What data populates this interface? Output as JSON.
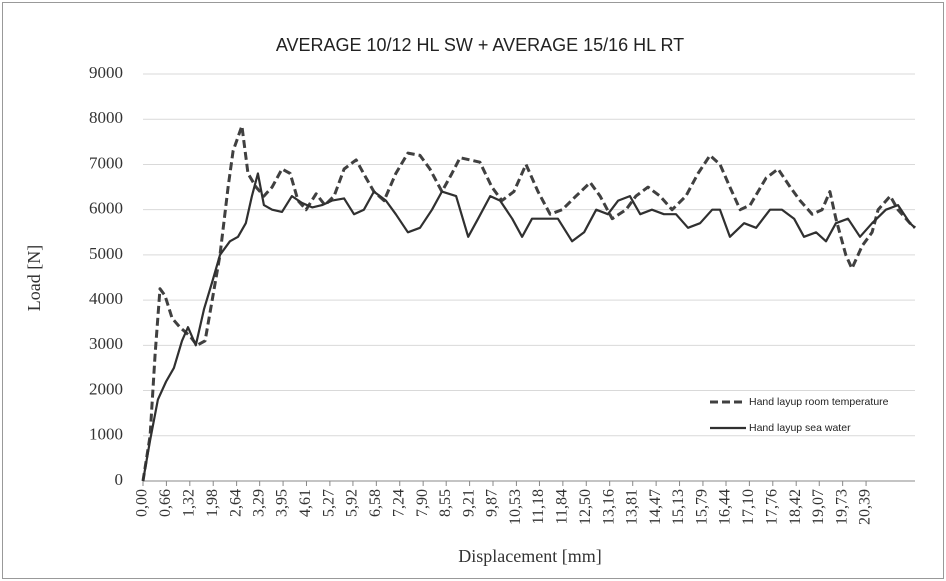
{
  "chart_data": {
    "type": "line",
    "title": "AVERAGE 10/12 HL SW + AVERAGE 15/16 HL RT",
    "x_label": "Displacement [mm]",
    "y_label": "Load [N]",
    "xlim": [
      0,
      21.77
    ],
    "ylim": [
      0,
      9000
    ],
    "yticks": [
      0,
      1000,
      2000,
      3000,
      4000,
      5000,
      6000,
      7000,
      8000,
      9000
    ],
    "xticks": [
      {
        "value": 0,
        "label": "0,00"
      },
      {
        "value": 0.66,
        "label": "0,66"
      },
      {
        "value": 1.32,
        "label": "1,32"
      },
      {
        "value": 1.98,
        "label": "1,98"
      },
      {
        "value": 2.64,
        "label": "2,64"
      },
      {
        "value": 3.29,
        "label": "3,29"
      },
      {
        "value": 3.95,
        "label": "3,95"
      },
      {
        "value": 4.61,
        "label": "4,61"
      },
      {
        "value": 5.27,
        "label": "5,27"
      },
      {
        "value": 5.92,
        "label": "5,92"
      },
      {
        "value": 6.58,
        "label": "6,58"
      },
      {
        "value": 7.24,
        "label": "7,24"
      },
      {
        "value": 7.9,
        "label": "7,90"
      },
      {
        "value": 8.55,
        "label": "8,55"
      },
      {
        "value": 9.21,
        "label": "9,21"
      },
      {
        "value": 9.87,
        "label": "9,87"
      },
      {
        "value": 10.53,
        "label": "10,53"
      },
      {
        "value": 11.18,
        "label": "11,18"
      },
      {
        "value": 11.84,
        "label": "11,84"
      },
      {
        "value": 12.5,
        "label": "12,50"
      },
      {
        "value": 13.16,
        "label": "13,16"
      },
      {
        "value": 13.81,
        "label": "13,81"
      },
      {
        "value": 14.47,
        "label": "14,47"
      },
      {
        "value": 15.13,
        "label": "15,13"
      },
      {
        "value": 15.79,
        "label": "15,79"
      },
      {
        "value": 16.44,
        "label": "16,44"
      },
      {
        "value": 17.1,
        "label": "17,10"
      },
      {
        "value": 17.76,
        "label": "17,76"
      },
      {
        "value": 18.42,
        "label": "18,42"
      },
      {
        "value": 19.07,
        "label": "19,07"
      },
      {
        "value": 19.73,
        "label": "19,73"
      },
      {
        "value": 20.39,
        "label": "20,39"
      }
    ],
    "grid": true,
    "legend_position": "right",
    "series": [
      {
        "name": "Hand layup room temperature",
        "color": "#404040",
        "dashed": true,
        "x": [
          0,
          0.2,
          0.34,
          0.48,
          0.62,
          0.82,
          1.04,
          1.33,
          1.52,
          1.75,
          1.95,
          2.17,
          2.4,
          2.54,
          2.79,
          2.96,
          3.19,
          3.41,
          3.64,
          3.92,
          4.15,
          4.37,
          4.6,
          4.88,
          5.13,
          5.39,
          5.67,
          6.01,
          6.29,
          6.51,
          6.8,
          7.13,
          7.47,
          7.81,
          8.09,
          8.43,
          8.71,
          8.94,
          9.22,
          9.5,
          9.84,
          10.12,
          10.46,
          10.8,
          11.14,
          11.48,
          11.82,
          12.21,
          12.61,
          12.89,
          13.23,
          13.62,
          13.9,
          14.24,
          14.58,
          14.92,
          15.31,
          15.65,
          15.99,
          16.27,
          16.55,
          16.84,
          17.12,
          17.57,
          17.91,
          18.25,
          18.53,
          18.87,
          19.15,
          19.37,
          19.54,
          19.82,
          19.99,
          20.28,
          20.56,
          20.73,
          21.07,
          21.29,
          21.63,
          21.77
        ],
        "values": [
          0,
          1000,
          2800,
          4250,
          4100,
          3600,
          3400,
          3200,
          3000,
          3100,
          4000,
          5000,
          6500,
          7300,
          7850,
          6800,
          6500,
          6300,
          6500,
          6900,
          6800,
          6200,
          6000,
          6350,
          6100,
          6300,
          6900,
          7100,
          6700,
          6400,
          6200,
          6800,
          7250,
          7200,
          6900,
          6400,
          6800,
          7150,
          7100,
          7050,
          6500,
          6200,
          6400,
          7000,
          6400,
          5900,
          6000,
          6300,
          6600,
          6300,
          5800,
          6000,
          6300,
          6500,
          6300,
          6000,
          6300,
          6800,
          7200,
          7000,
          6500,
          6000,
          6100,
          6700,
          6900,
          6500,
          6200,
          5900,
          6000,
          6400,
          5800,
          5000,
          4700,
          5200,
          5500,
          6000,
          6300,
          6000,
          5700,
          5600
        ]
      },
      {
        "name": "Hand layup sea water",
        "color": "#303030",
        "dashed": false,
        "x": [
          0,
          0.2,
          0.42,
          0.65,
          0.87,
          1.1,
          1.27,
          1.49,
          1.72,
          1.95,
          2.17,
          2.45,
          2.68,
          2.9,
          3.07,
          3.24,
          3.41,
          3.64,
          3.92,
          4.2,
          4.48,
          4.77,
          5.05,
          5.33,
          5.67,
          5.95,
          6.23,
          6.51,
          6.85,
          7.13,
          7.47,
          7.81,
          8.15,
          8.43,
          8.83,
          9.17,
          9.45,
          9.79,
          10.07,
          10.41,
          10.69,
          10.97,
          11.36,
          11.7,
          12.1,
          12.44,
          12.78,
          13.11,
          13.4,
          13.73,
          14.02,
          14.35,
          14.69,
          15.03,
          15.37,
          15.71,
          16.05,
          16.27,
          16.55,
          16.95,
          17.29,
          17.68,
          18.02,
          18.36,
          18.64,
          18.98,
          19.26,
          19.54,
          19.88,
          20.22,
          20.56,
          20.95,
          21.29,
          21.63,
          21.77
        ],
        "values": [
          0,
          900,
          1800,
          2200,
          2500,
          3100,
          3400,
          3000,
          3800,
          4400,
          5000,
          5300,
          5400,
          5700,
          6300,
          6800,
          6100,
          6000,
          5950,
          6300,
          6150,
          6050,
          6100,
          6200,
          6250,
          5900,
          6000,
          6400,
          6200,
          5900,
          5500,
          5600,
          6000,
          6400,
          6300,
          5400,
          5800,
          6300,
          6200,
          5800,
          5400,
          5800,
          5800,
          5800,
          5300,
          5500,
          6000,
          5900,
          6200,
          6300,
          5900,
          6000,
          5900,
          5900,
          5600,
          5700,
          6000,
          6000,
          5400,
          5700,
          5600,
          6000,
          6000,
          5800,
          5400,
          5500,
          5300,
          5700,
          5800,
          5400,
          5700,
          6000,
          6100,
          5700,
          5600
        ]
      }
    ]
  }
}
